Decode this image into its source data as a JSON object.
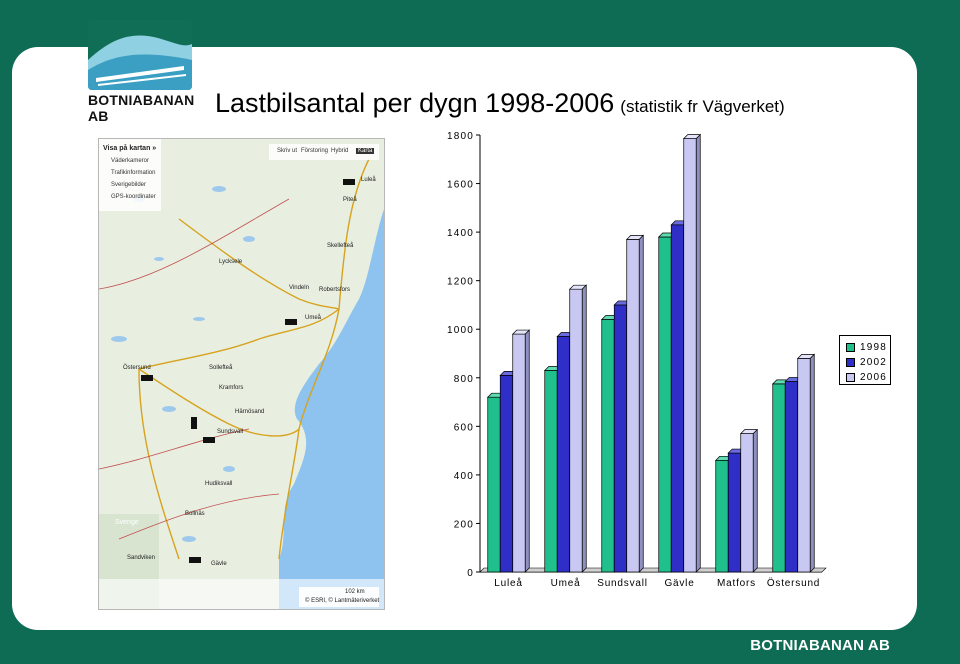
{
  "header": {
    "title_main": "Lastbilsantal per dygn 1998-2006",
    "title_sub": "(statistik fr Vägverket)"
  },
  "logo": {
    "top_text": "BOTNIABANAN AB",
    "bottom_text": "BOTNIABANAN AB"
  },
  "map": {
    "panel_title": "Visa på kartan »",
    "panel_items": [
      "Väderkameror",
      "Trafikinformation",
      "Sverigebilder",
      "GPS-koordinater"
    ],
    "tabs": [
      "Skriv ut",
      "Förstoring",
      "Hybrid",
      "Karta"
    ],
    "places": [
      "Luleå",
      "Piteå",
      "Skellefteå",
      "Umeå",
      "Robertsfors",
      "Vindeln",
      "Lycksele",
      "Östersund",
      "Sollefteå",
      "Kramfors",
      "Härnösand",
      "Sundsvall",
      "Hudiksvall",
      "Bollnäs",
      "Gävle",
      "Sverige",
      "Sandviken"
    ],
    "scale_label": "102 km",
    "copyright": "© ESRI, © Lantmäteriverket"
  },
  "colors": {
    "y1998": "#1fc08c",
    "y2002": "#2f2fc8",
    "y2006": "#c8c8f2"
  },
  "chart_data": {
    "type": "bar",
    "title": "",
    "xlabel": "",
    "ylabel": "",
    "ylim": [
      0,
      1800
    ],
    "yticks": [
      0,
      200,
      400,
      600,
      800,
      1000,
      1200,
      1400,
      1600,
      1800
    ],
    "categories": [
      "Luleå",
      "Umeå",
      "Sundsvall",
      "Gävle",
      "Matfors",
      "Östersund"
    ],
    "series": [
      {
        "name": "1998",
        "values": [
          720,
          830,
          1040,
          1380,
          460,
          775
        ]
      },
      {
        "name": "2002",
        "values": [
          810,
          970,
          1100,
          1430,
          490,
          785
        ]
      },
      {
        "name": "2006",
        "values": [
          980,
          1165,
          1370,
          1785,
          570,
          880
        ]
      }
    ],
    "grid": false,
    "legend": "right",
    "style": "3d"
  }
}
